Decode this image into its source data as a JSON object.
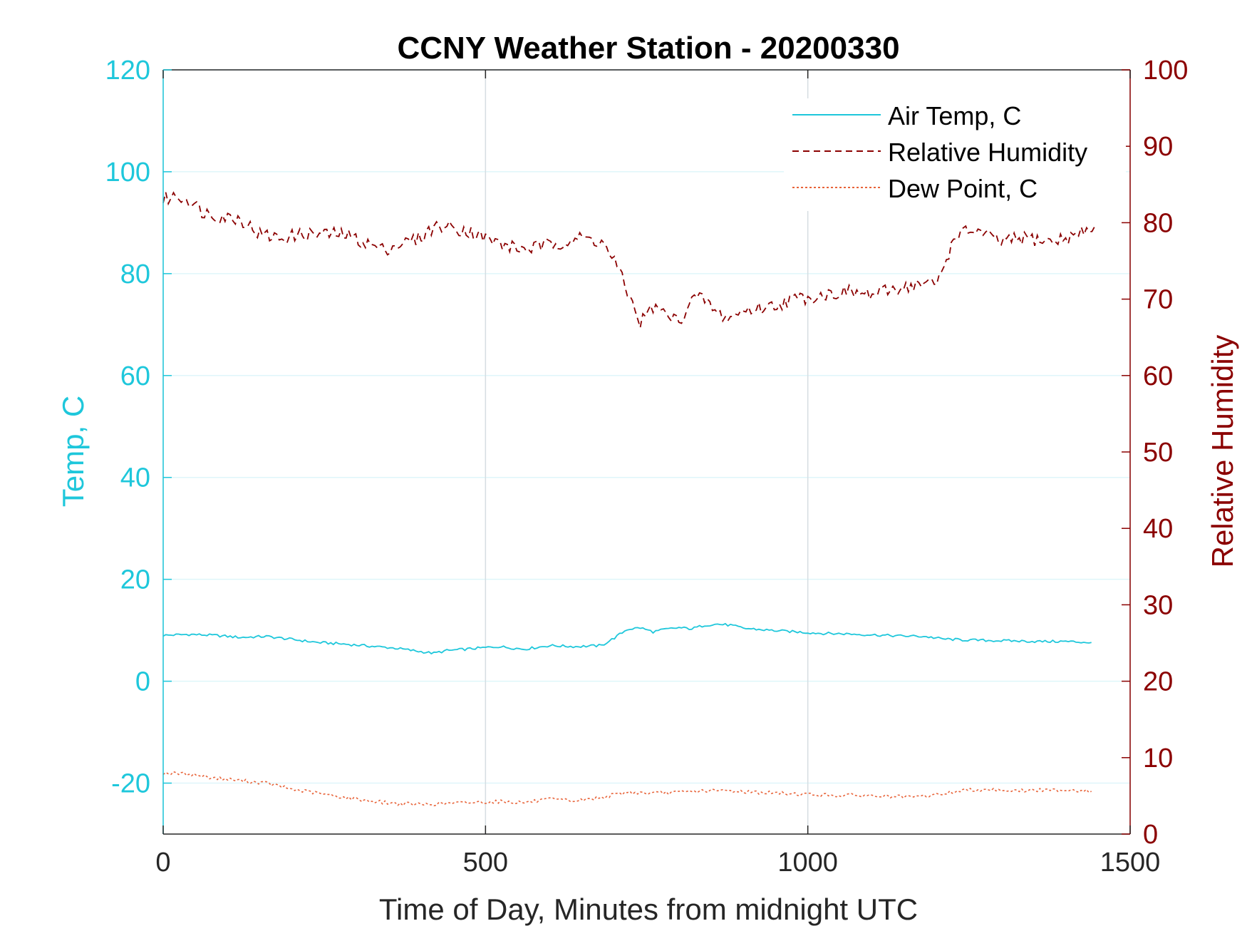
{
  "colors": {
    "air_temp": "#1ec7db",
    "humidity": "#8b0000",
    "dew_point": "#e8643a",
    "frame": "#262626",
    "grid_h": "#dff6fa",
    "grid_v": "#d5dde2"
  },
  "chart_data": {
    "type": "line",
    "title": "CCNY Weather Station - 20200330",
    "xlabel": "Time of Day, Minutes from midnight UTC",
    "ylabel_left": "Temp, C",
    "ylabel_right": "Relative Humidity",
    "xlim": [
      0,
      1500
    ],
    "ylim_left": [
      -30,
      120
    ],
    "ylim_right": [
      0,
      100
    ],
    "x_ticks": [
      0,
      500,
      1000,
      1500
    ],
    "y_ticks_left": [
      -20,
      0,
      20,
      40,
      60,
      80,
      100,
      120
    ],
    "y_ticks_right": [
      0,
      10,
      20,
      30,
      40,
      50,
      60,
      70,
      80,
      90,
      100
    ],
    "grid": true,
    "legend_position": "top-right",
    "series": [
      {
        "name": "Air Temp, C",
        "axis": "left",
        "style": "solid",
        "x": [
          0,
          40,
          80,
          120,
          160,
          200,
          240,
          280,
          320,
          360,
          400,
          420,
          440,
          480,
          520,
          560,
          600,
          640,
          680,
          700,
          720,
          740,
          760,
          780,
          800,
          820,
          840,
          860,
          880,
          900,
          940,
          980,
          1020,
          1060,
          1100,
          1140,
          1180,
          1210,
          1240,
          1280,
          1320,
          1360,
          1400,
          1440
        ],
        "y": [
          9,
          9.2,
          9,
          8.6,
          8.8,
          8.2,
          7.6,
          7.3,
          6.9,
          6.5,
          5.8,
          5.5,
          6.0,
          6.4,
          6.8,
          6.3,
          7.0,
          6.8,
          7.0,
          8.5,
          10.2,
          10.5,
          9.7,
          10.2,
          10.5,
          10.3,
          11.0,
          11.2,
          11.0,
          10.4,
          10.0,
          9.7,
          9.4,
          9.3,
          9.1,
          8.9,
          8.8,
          8.3,
          8.1,
          8.0,
          7.9,
          7.8,
          7.8,
          7.6
        ]
      },
      {
        "name": "Relative Humidity",
        "axis": "right",
        "style": "dashed",
        "x": [
          0,
          20,
          40,
          60,
          80,
          120,
          150,
          180,
          220,
          250,
          280,
          310,
          340,
          360,
          400,
          420,
          440,
          470,
          500,
          530,
          560,
          590,
          620,
          650,
          680,
          700,
          720,
          740,
          760,
          780,
          800,
          820,
          840,
          860,
          880,
          900,
          940,
          980,
          1020,
          1060,
          1100,
          1140,
          1180,
          1200,
          1230,
          1260,
          1300,
          1340,
          1380,
          1420,
          1445
        ],
        "y": [
          83,
          83.5,
          83,
          81.5,
          81,
          80.5,
          78.5,
          78,
          78.5,
          78.5,
          78.5,
          77.5,
          76.5,
          77,
          78,
          79.5,
          79.5,
          79,
          78,
          77,
          76.5,
          77,
          77.5,
          78,
          77.5,
          75,
          71,
          67,
          69,
          68,
          67,
          70,
          70,
          68,
          67.5,
          68.5,
          69,
          70,
          70.5,
          71,
          70.5,
          71.5,
          72,
          72,
          78.5,
          79,
          77.5,
          78,
          77.5,
          78.5,
          79.5
        ]
      },
      {
        "name": "Dew Point, C",
        "axis": "left",
        "style": "dotted",
        "x": [
          0,
          40,
          80,
          120,
          160,
          200,
          240,
          280,
          320,
          360,
          400,
          440,
          480,
          520,
          560,
          600,
          640,
          680,
          720,
          760,
          800,
          840,
          880,
          920,
          960,
          1000,
          1040,
          1080,
          1120,
          1160,
          1200,
          1240,
          1280,
          1320,
          1360,
          1400,
          1440
        ],
        "y": [
          -18,
          -18.2,
          -19,
          -19.5,
          -20,
          -21.2,
          -22,
          -22.8,
          -23.5,
          -24,
          -24.2,
          -24,
          -23.8,
          -23.6,
          -23.8,
          -23.2,
          -23.5,
          -22.8,
          -21.8,
          -22,
          -21.8,
          -21.5,
          -21.5,
          -21.8,
          -22,
          -22.2,
          -22.4,
          -22.4,
          -22.6,
          -22.8,
          -22.3,
          -21.4,
          -21.2,
          -21.5,
          -21.4,
          -21.3,
          -21.6
        ]
      }
    ]
  }
}
